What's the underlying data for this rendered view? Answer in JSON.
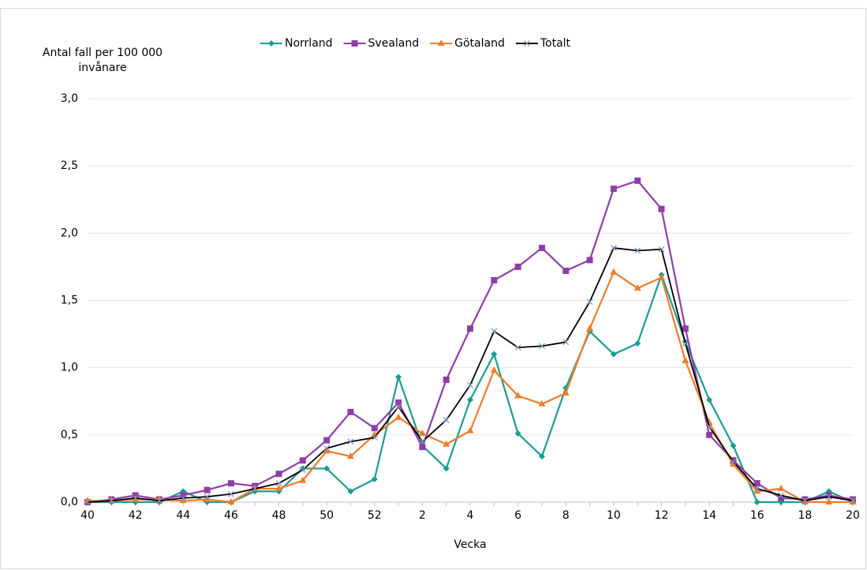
{
  "chart_data": {
    "type": "line",
    "ylabel": [
      "Antal fall per 100 000",
      "invånare"
    ],
    "xlabel": "Vecka",
    "categories": [
      "40",
      null,
      "42",
      null,
      "44",
      null,
      "46",
      null,
      "48",
      null,
      "50",
      null,
      "52",
      null,
      "2",
      null,
      "4",
      null,
      "6",
      null,
      "8",
      null,
      "10",
      null,
      "12",
      null,
      "14",
      null,
      "16",
      null,
      "18",
      null,
      "20"
    ],
    "series": [
      {
        "name": "Norrland",
        "color": "#1a9e8f",
        "marker": "diamond",
        "values": [
          0,
          0,
          0,
          0,
          0.08,
          0,
          0,
          0.08,
          0.08,
          0.25,
          0.25,
          0.08,
          0.17,
          0.93,
          0.42,
          0.25,
          0.76,
          1.1,
          0.51,
          0.34,
          0.85,
          1.27,
          1.1,
          1.18,
          1.69,
          1.19,
          0.76,
          0.42,
          0,
          0,
          0,
          0.08,
          0
        ]
      },
      {
        "name": "Svealand",
        "color": "#8e3ea8",
        "marker": "square",
        "values": [
          0,
          0.02,
          0.05,
          0.02,
          0.05,
          0.09,
          0.14,
          0.12,
          0.21,
          0.31,
          0.46,
          0.67,
          0.55,
          0.74,
          0.41,
          0.91,
          1.29,
          1.65,
          1.75,
          1.89,
          1.72,
          1.8,
          2.33,
          2.39,
          2.18,
          1.29,
          0.5,
          0.31,
          0.14,
          0.03,
          0.02,
          0.05,
          0.02
        ]
      },
      {
        "name": "Götaland",
        "color": "#f07c2a",
        "marker": "triangle",
        "values": [
          0.01,
          0.01,
          0.02,
          0.02,
          0.01,
          0.02,
          0,
          0.1,
          0.1,
          0.16,
          0.38,
          0.34,
          0.5,
          0.63,
          0.51,
          0.43,
          0.53,
          0.98,
          0.79,
          0.73,
          0.81,
          1.29,
          1.71,
          1.59,
          1.67,
          1.05,
          0.59,
          0.28,
          0.08,
          0.1,
          0,
          0,
          0
        ]
      },
      {
        "name": "Totalt",
        "color": "#000000",
        "marker_color": "#7d8fc0",
        "marker": "x",
        "values": [
          0,
          0.01,
          0.03,
          0.01,
          0.03,
          0.04,
          0.06,
          0.1,
          0.14,
          0.24,
          0.4,
          0.45,
          0.48,
          0.71,
          0.45,
          0.61,
          0.87,
          1.27,
          1.15,
          1.16,
          1.19,
          1.49,
          1.89,
          1.87,
          1.88,
          1.18,
          0.56,
          0.3,
          0.1,
          0.05,
          0.01,
          0.04,
          0.01
        ]
      }
    ],
    "ylim": [
      0,
      3
    ],
    "yticks": [
      {
        "value": 0,
        "label": "0,0"
      },
      {
        "value": 0.5,
        "label": "0,5"
      },
      {
        "value": 1,
        "label": "1,0"
      },
      {
        "value": 1.5,
        "label": "1,5"
      },
      {
        "value": 2,
        "label": "2,0"
      },
      {
        "value": 2.5,
        "label": "2,5"
      },
      {
        "value": 3,
        "label": "3,0"
      }
    ],
    "grid": true,
    "legend": "top"
  }
}
